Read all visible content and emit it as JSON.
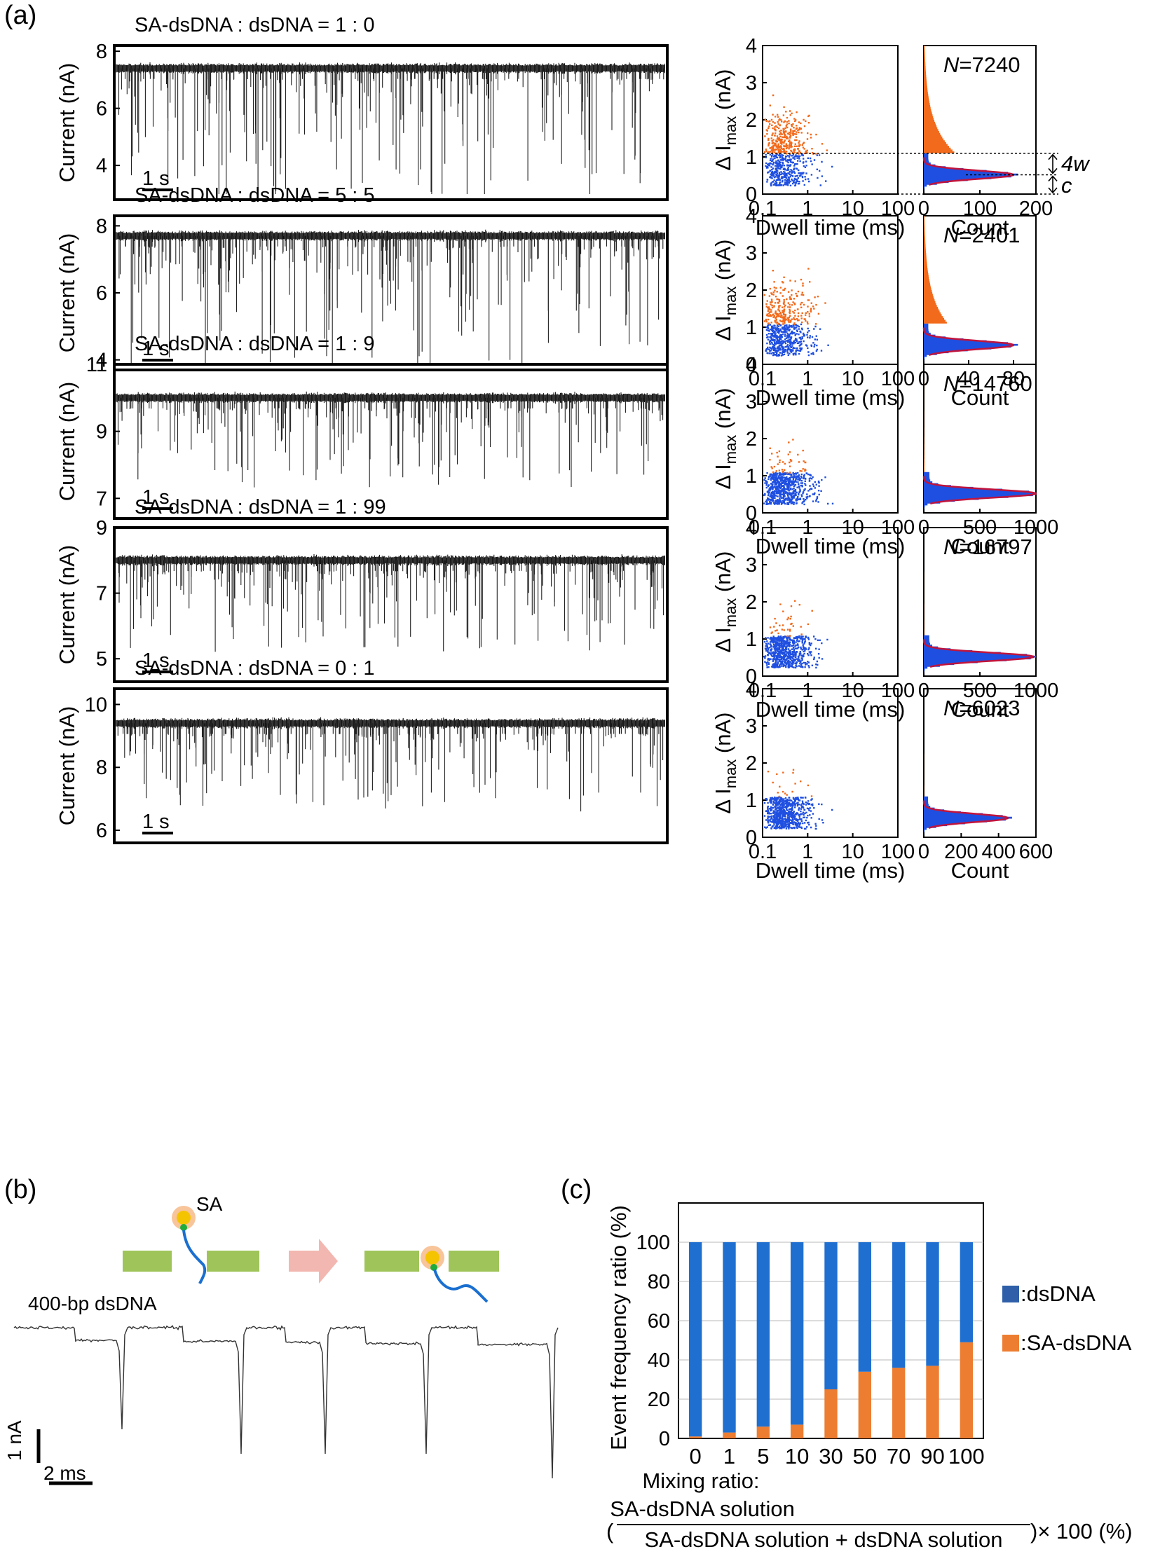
{
  "panel_labels": {
    "a": "(a)",
    "b": "(b)",
    "c": "(c)"
  },
  "panel_a": {
    "trace_ylabel": "Current (nA)",
    "scale_bar_label": "1 s",
    "scatter_xlabel": "Dwell time (ms)",
    "scatter_ylabel_prefix": "Δ I",
    "scatter_ylabel_sub": "max",
    "scatter_ylabel_suffix": " (nA)",
    "hist_xlabel": "Count",
    "scatter_xticks": [
      "0.1",
      "1",
      "10",
      "100"
    ],
    "scatter_yticks": [
      "0",
      "1",
      "2",
      "3",
      "4"
    ],
    "annotation_4w": "4w",
    "annotation_c": "c",
    "colors": {
      "dsDNA": "#1f4fe0",
      "SA_dsDNA": "#f26a1b",
      "fit": "#c0143c"
    },
    "rows": [
      {
        "title": "SA-dsDNA : dsDNA = 1 : 0",
        "yticks": [
          "4",
          "6",
          "8"
        ],
        "ylim": [
          2.8,
          8.2
        ],
        "baseline": 7.4,
        "N_label": "N",
        "N_value": "=7240",
        "hist_xticks": [
          "0",
          "100",
          "200"
        ],
        "hist_xmax": 200,
        "peak_count": 160,
        "orange_fraction": 0.45
      },
      {
        "title": "SA-dsDNA : dsDNA = 5 : 5",
        "yticks": [
          "4",
          "6",
          "8"
        ],
        "ylim": [
          3.7,
          8.3
        ],
        "baseline": 7.7,
        "N_label": "N",
        "N_value": "=2401",
        "hist_xticks": [
          "0",
          "40",
          "80"
        ],
        "hist_xmax": 100,
        "peak_count": 80,
        "orange_fraction": 0.34
      },
      {
        "title": "SA-dsDNA : dsDNA = 1 : 9",
        "yticks": [
          "7",
          "9",
          "11"
        ],
        "ylim": [
          6.4,
          11.0
        ],
        "baseline": 10.0,
        "N_label": "N",
        "N_value": "=14760",
        "hist_xticks": [
          "0",
          "500",
          "1000"
        ],
        "hist_xmax": 1000,
        "peak_count": 1000,
        "orange_fraction": 0.08
      },
      {
        "title": "SA-dsDNA : dsDNA = 1 : 99",
        "yticks": [
          "5",
          "7",
          "9"
        ],
        "ylim": [
          4.3,
          9.0
        ],
        "baseline": 8.0,
        "N_label": "N",
        "N_value": "=16797",
        "hist_xticks": [
          "0",
          "500",
          "1000"
        ],
        "hist_xmax": 1000,
        "peak_count": 980,
        "orange_fraction": 0.03
      },
      {
        "title": "SA-dsDNA : dsDNA = 0 : 1",
        "yticks": [
          "6",
          "8",
          "10"
        ],
        "ylim": [
          5.6,
          10.5
        ],
        "baseline": 9.4,
        "N_label": "N",
        "N_value": "=6023",
        "hist_xticks": [
          "0",
          "200",
          "400",
          "600"
        ],
        "hist_xmax": 600,
        "peak_count": 450,
        "orange_fraction": 0.02
      }
    ]
  },
  "panel_b": {
    "sa_label": "SA",
    "dna_label": "400-bp dsDNA",
    "scale_current": "1 nA",
    "scale_time": "2 ms"
  },
  "chart_data": {
    "type": "bar",
    "title": "",
    "xlabel": "Mixing ratio:",
    "xlabel_numerator": "SA-dsDNA solution",
    "xlabel_denominator": "SA-dsDNA solution + dsDNA solution",
    "xlabel_paren_open": "(",
    "xlabel_suffix": ")× 100 (%)",
    "ylabel": "Event frequency ratio (%)",
    "ylim": [
      0,
      120
    ],
    "yticks": [
      0,
      20,
      40,
      60,
      80,
      100
    ],
    "categories": [
      "0",
      "1",
      "5",
      "10",
      "30",
      "50",
      "70",
      "90",
      "100"
    ],
    "stacked": true,
    "series": [
      {
        "name": ":SA-dsDNA",
        "color": "#ed7d31",
        "values": [
          1,
          3,
          6,
          7,
          25,
          34,
          36,
          37,
          49
        ]
      },
      {
        "name": ":dsDNA",
        "color": "#1f6fd0",
        "values": [
          99,
          97,
          94,
          93,
          75,
          66,
          64,
          63,
          51
        ]
      }
    ],
    "legend": [
      {
        "label": ":dsDNA",
        "color": "#2e5fa8"
      },
      {
        "label": ":SA-dsDNA",
        "color": "#ed7d31"
      }
    ],
    "legend_position": "right"
  }
}
